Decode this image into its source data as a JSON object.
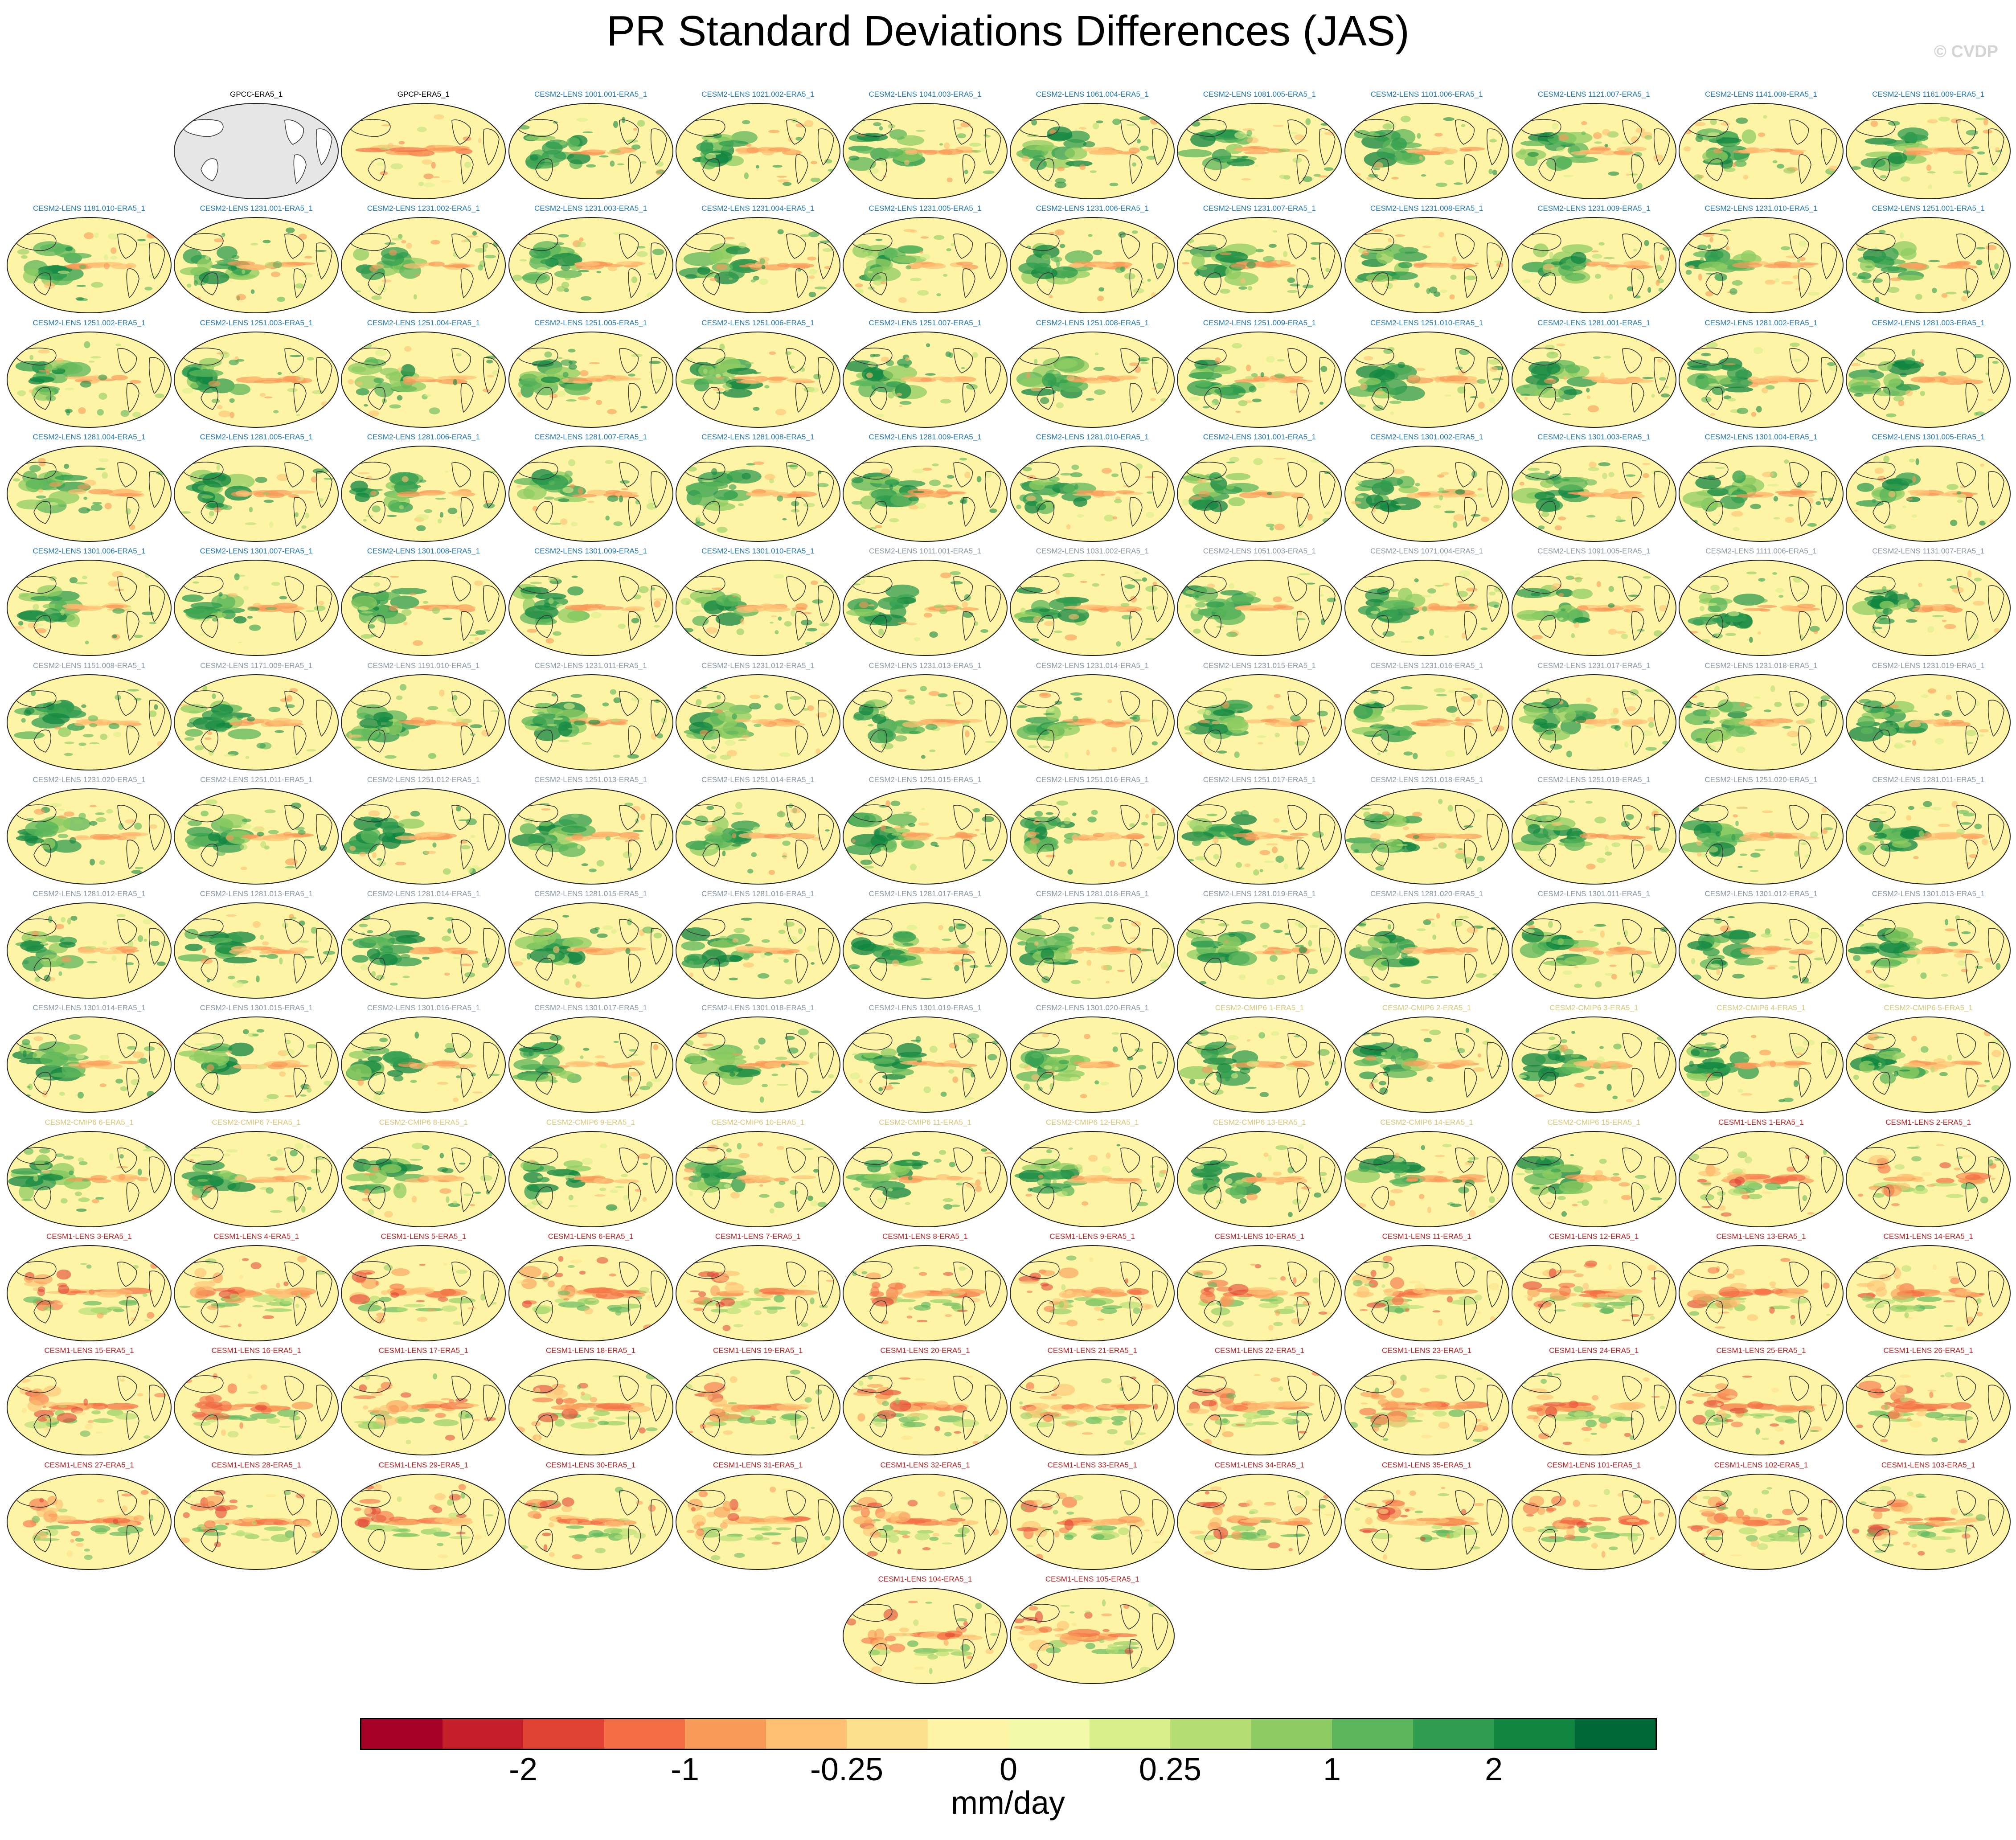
{
  "title": "PR Standard Deviations Differences (JAS)",
  "watermark": "© CVDP",
  "units": "mm/day",
  "colorbar": {
    "colors": [
      "#a50026",
      "#c5202a",
      "#df4133",
      "#f26d44",
      "#f89a58",
      "#fdc073",
      "#fde08b",
      "#fef4a6",
      "#f2f9a9",
      "#d9ef8b",
      "#b4de74",
      "#8dcc62",
      "#5bb55b",
      "#2f9c4f",
      "#108540",
      "#006837"
    ],
    "tick_labels": [
      {
        "label": "-2",
        "boundary": 2
      },
      {
        "label": "-1",
        "boundary": 4
      },
      {
        "label": "-0.25",
        "boundary": 6
      },
      {
        "label": "0",
        "boundary": 8
      },
      {
        "label": "0.25",
        "boundary": 10
      },
      {
        "label": "1",
        "boundary": 12
      },
      {
        "label": "2",
        "boundary": 14
      }
    ]
  },
  "label_colors": {
    "obs": "#000000",
    "cesm2": "#1f77b4",
    "cesm2_light": "#8a9aa8",
    "cmip6": "#d9c878",
    "cesm1": "#b22222"
  },
  "panels": [
    {
      "label": "GPCC-ERA5_1",
      "group": "obs",
      "style": "empty"
    },
    {
      "label": "GPCP-ERA5_1",
      "group": "obs",
      "style": "gpcp"
    },
    {
      "label": "CESM2-LENS 1001.001-ERA5_1",
      "group": "cesm2",
      "style": "cesm2"
    },
    {
      "label": "CESM2-LENS 1021.002-ERA5_1",
      "group": "cesm2",
      "style": "cesm2"
    },
    {
      "label": "CESM2-LENS 1041.003-ERA5_1",
      "group": "cesm2",
      "style": "cesm2"
    },
    {
      "label": "CESM2-LENS 1061.004-ERA5_1",
      "group": "cesm2",
      "style": "cesm2"
    },
    {
      "label": "CESM2-LENS 1081.005-ERA5_1",
      "group": "cesm2",
      "style": "cesm2"
    },
    {
      "label": "CESM2-LENS 1101.006-ERA5_1",
      "group": "cesm2",
      "style": "cesm2"
    },
    {
      "label": "CESM2-LENS 1121.007-ERA5_1",
      "group": "cesm2",
      "style": "cesm2"
    },
    {
      "label": "CESM2-LENS 1141.008-ERA5_1",
      "group": "cesm2",
      "style": "cesm2"
    },
    {
      "label": "CESM2-LENS 1161.009-ERA5_1",
      "group": "cesm2",
      "style": "cesm2"
    },
    {
      "label": "CESM2-LENS 1181.010-ERA5_1",
      "group": "cesm2",
      "style": "cesm2"
    },
    {
      "label": "CESM2-LENS 1231.001-ERA5_1",
      "group": "cesm2",
      "style": "cesm2"
    },
    {
      "label": "CESM2-LENS 1231.002-ERA5_1",
      "group": "cesm2",
      "style": "cesm2"
    },
    {
      "label": "CESM2-LENS 1231.003-ERA5_1",
      "group": "cesm2",
      "style": "cesm2"
    },
    {
      "label": "CESM2-LENS 1231.004-ERA5_1",
      "group": "cesm2",
      "style": "cesm2"
    },
    {
      "label": "CESM2-LENS 1231.005-ERA5_1",
      "group": "cesm2",
      "style": "cesm2"
    },
    {
      "label": "CESM2-LENS 1231.006-ERA5_1",
      "group": "cesm2",
      "style": "cesm2"
    },
    {
      "label": "CESM2-LENS 1231.007-ERA5_1",
      "group": "cesm2",
      "style": "cesm2"
    },
    {
      "label": "CESM2-LENS 1231.008-ERA5_1",
      "group": "cesm2",
      "style": "cesm2"
    },
    {
      "label": "CESM2-LENS 1231.009-ERA5_1",
      "group": "cesm2",
      "style": "cesm2"
    },
    {
      "label": "CESM2-LENS 1231.010-ERA5_1",
      "group": "cesm2",
      "style": "cesm2"
    },
    {
      "label": "CESM2-LENS 1251.001-ERA5_1",
      "group": "cesm2",
      "style": "cesm2"
    },
    {
      "label": "CESM2-LENS 1251.002-ERA5_1",
      "group": "cesm2",
      "style": "cesm2"
    },
    {
      "label": "CESM2-LENS 1251.003-ERA5_1",
      "group": "cesm2",
      "style": "cesm2"
    },
    {
      "label": "CESM2-LENS 1251.004-ERA5_1",
      "group": "cesm2",
      "style": "cesm2"
    },
    {
      "label": "CESM2-LENS 1251.005-ERA5_1",
      "group": "cesm2",
      "style": "cesm2"
    },
    {
      "label": "CESM2-LENS 1251.006-ERA5_1",
      "group": "cesm2",
      "style": "cesm2"
    },
    {
      "label": "CESM2-LENS 1251.007-ERA5_1",
      "group": "cesm2",
      "style": "cesm2"
    },
    {
      "label": "CESM2-LENS 1251.008-ERA5_1",
      "group": "cesm2",
      "style": "cesm2"
    },
    {
      "label": "CESM2-LENS 1251.009-ERA5_1",
      "group": "cesm2",
      "style": "cesm2"
    },
    {
      "label": "CESM2-LENS 1251.010-ERA5_1",
      "group": "cesm2",
      "style": "cesm2"
    },
    {
      "label": "CESM2-LENS 1281.001-ERA5_1",
      "group": "cesm2",
      "style": "cesm2"
    },
    {
      "label": "CESM2-LENS 1281.002-ERA5_1",
      "group": "cesm2",
      "style": "cesm2"
    },
    {
      "label": "CESM2-LENS 1281.003-ERA5_1",
      "group": "cesm2",
      "style": "cesm2"
    },
    {
      "label": "CESM2-LENS 1281.004-ERA5_1",
      "group": "cesm2",
      "style": "cesm2"
    },
    {
      "label": "CESM2-LENS 1281.005-ERA5_1",
      "group": "cesm2",
      "style": "cesm2"
    },
    {
      "label": "CESM2-LENS 1281.006-ERA5_1",
      "group": "cesm2",
      "style": "cesm2"
    },
    {
      "label": "CESM2-LENS 1281.007-ERA5_1",
      "group": "cesm2",
      "style": "cesm2"
    },
    {
      "label": "CESM2-LENS 1281.008-ERA5_1",
      "group": "cesm2",
      "style": "cesm2"
    },
    {
      "label": "CESM2-LENS 1281.009-ERA5_1",
      "group": "cesm2",
      "style": "cesm2"
    },
    {
      "label": "CESM2-LENS 1281.010-ERA5_1",
      "group": "cesm2",
      "style": "cesm2"
    },
    {
      "label": "CESM2-LENS 1301.001-ERA5_1",
      "group": "cesm2",
      "style": "cesm2"
    },
    {
      "label": "CESM2-LENS 1301.002-ERA5_1",
      "group": "cesm2",
      "style": "cesm2"
    },
    {
      "label": "CESM2-LENS 1301.003-ERA5_1",
      "group": "cesm2",
      "style": "cesm2"
    },
    {
      "label": "CESM2-LENS 1301.004-ERA5_1",
      "group": "cesm2",
      "style": "cesm2"
    },
    {
      "label": "CESM2-LENS 1301.005-ERA5_1",
      "group": "cesm2",
      "style": "cesm2"
    },
    {
      "label": "CESM2-LENS 1301.006-ERA5_1",
      "group": "cesm2",
      "style": "cesm2"
    },
    {
      "label": "CESM2-LENS 1301.007-ERA5_1",
      "group": "cesm2",
      "style": "cesm2"
    },
    {
      "label": "CESM2-LENS 1301.008-ERA5_1",
      "group": "cesm2",
      "style": "cesm2"
    },
    {
      "label": "CESM2-LENS 1301.009-ERA5_1",
      "group": "cesm2",
      "style": "cesm2"
    },
    {
      "label": "CESM2-LENS 1301.010-ERA5_1",
      "group": "cesm2",
      "style": "cesm2"
    },
    {
      "label": "CESM2-LENS 1011.001-ERA5_1",
      "group": "cesm2_light",
      "style": "cesm2"
    },
    {
      "label": "CESM2-LENS 1031.002-ERA5_1",
      "group": "cesm2_light",
      "style": "cesm2"
    },
    {
      "label": "CESM2-LENS 1051.003-ERA5_1",
      "group": "cesm2_light",
      "style": "cesm2"
    },
    {
      "label": "CESM2-LENS 1071.004-ERA5_1",
      "group": "cesm2_light",
      "style": "cesm2"
    },
    {
      "label": "CESM2-LENS 1091.005-ERA5_1",
      "group": "cesm2_light",
      "style": "cesm2"
    },
    {
      "label": "CESM2-LENS 1111.006-ERA5_1",
      "group": "cesm2_light",
      "style": "cesm2"
    },
    {
      "label": "CESM2-LENS 1131.007-ERA5_1",
      "group": "cesm2_light",
      "style": "cesm2"
    },
    {
      "label": "CESM2-LENS 1151.008-ERA5_1",
      "group": "cesm2_light",
      "style": "cesm2"
    },
    {
      "label": "CESM2-LENS 1171.009-ERA5_1",
      "group": "cesm2_light",
      "style": "cesm2"
    },
    {
      "label": "CESM2-LENS 1191.010-ERA5_1",
      "group": "cesm2_light",
      "style": "cesm2"
    },
    {
      "label": "CESM2-LENS 1231.011-ERA5_1",
      "group": "cesm2_light",
      "style": "cesm2"
    },
    {
      "label": "CESM2-LENS 1231.012-ERA5_1",
      "group": "cesm2_light",
      "style": "cesm2"
    },
    {
      "label": "CESM2-LENS 1231.013-ERA5_1",
      "group": "cesm2_light",
      "style": "cesm2"
    },
    {
      "label": "CESM2-LENS 1231.014-ERA5_1",
      "group": "cesm2_light",
      "style": "cesm2"
    },
    {
      "label": "CESM2-LENS 1231.015-ERA5_1",
      "group": "cesm2_light",
      "style": "cesm2"
    },
    {
      "label": "CESM2-LENS 1231.016-ERA5_1",
      "group": "cesm2_light",
      "style": "cesm2"
    },
    {
      "label": "CESM2-LENS 1231.017-ERA5_1",
      "group": "cesm2_light",
      "style": "cesm2"
    },
    {
      "label": "CESM2-LENS 1231.018-ERA5_1",
      "group": "cesm2_light",
      "style": "cesm2"
    },
    {
      "label": "CESM2-LENS 1231.019-ERA5_1",
      "group": "cesm2_light",
      "style": "cesm2"
    },
    {
      "label": "CESM2-LENS 1231.020-ERA5_1",
      "group": "cesm2_light",
      "style": "cesm2"
    },
    {
      "label": "CESM2-LENS 1251.011-ERA5_1",
      "group": "cesm2_light",
      "style": "cesm2"
    },
    {
      "label": "CESM2-LENS 1251.012-ERA5_1",
      "group": "cesm2_light",
      "style": "cesm2"
    },
    {
      "label": "CESM2-LENS 1251.013-ERA5_1",
      "group": "cesm2_light",
      "style": "cesm2"
    },
    {
      "label": "CESM2-LENS 1251.014-ERA5_1",
      "group": "cesm2_light",
      "style": "cesm2"
    },
    {
      "label": "CESM2-LENS 1251.015-ERA5_1",
      "group": "cesm2_light",
      "style": "cesm2"
    },
    {
      "label": "CESM2-LENS 1251.016-ERA5_1",
      "group": "cesm2_light",
      "style": "cesm2"
    },
    {
      "label": "CESM2-LENS 1251.017-ERA5_1",
      "group": "cesm2_light",
      "style": "cesm2"
    },
    {
      "label": "CESM2-LENS 1251.018-ERA5_1",
      "group": "cesm2_light",
      "style": "cesm2"
    },
    {
      "label": "CESM2-LENS 1251.019-ERA5_1",
      "group": "cesm2_light",
      "style": "cesm2"
    },
    {
      "label": "CESM2-LENS 1251.020-ERA5_1",
      "group": "cesm2_light",
      "style": "cesm2"
    },
    {
      "label": "CESM2-LENS 1281.011-ERA5_1",
      "group": "cesm2_light",
      "style": "cesm2"
    },
    {
      "label": "CESM2-LENS 1281.012-ERA5_1",
      "group": "cesm2_light",
      "style": "cesm2"
    },
    {
      "label": "CESM2-LENS 1281.013-ERA5_1",
      "group": "cesm2_light",
      "style": "cesm2"
    },
    {
      "label": "CESM2-LENS 1281.014-ERA5_1",
      "group": "cesm2_light",
      "style": "cesm2"
    },
    {
      "label": "CESM2-LENS 1281.015-ERA5_1",
      "group": "cesm2_light",
      "style": "cesm2"
    },
    {
      "label": "CESM2-LENS 1281.016-ERA5_1",
      "group": "cesm2_light",
      "style": "cesm2"
    },
    {
      "label": "CESM2-LENS 1281.017-ERA5_1",
      "group": "cesm2_light",
      "style": "cesm2"
    },
    {
      "label": "CESM2-LENS 1281.018-ERA5_1",
      "group": "cesm2_light",
      "style": "cesm2"
    },
    {
      "label": "CESM2-LENS 1281.019-ERA5_1",
      "group": "cesm2_light",
      "style": "cesm2"
    },
    {
      "label": "CESM2-LENS 1281.020-ERA5_1",
      "group": "cesm2_light",
      "style": "cesm2"
    },
    {
      "label": "CESM2-LENS 1301.011-ERA5_1",
      "group": "cesm2_light",
      "style": "cesm2"
    },
    {
      "label": "CESM2-LENS 1301.012-ERA5_1",
      "group": "cesm2_light",
      "style": "cesm2"
    },
    {
      "label": "CESM2-LENS 1301.013-ERA5_1",
      "group": "cesm2_light",
      "style": "cesm2"
    },
    {
      "label": "CESM2-LENS 1301.014-ERA5_1",
      "group": "cesm2_light",
      "style": "cesm2"
    },
    {
      "label": "CESM2-LENS 1301.015-ERA5_1",
      "group": "cesm2_light",
      "style": "cesm2"
    },
    {
      "label": "CESM2-LENS 1301.016-ERA5_1",
      "group": "cesm2_light",
      "style": "cesm2"
    },
    {
      "label": "CESM2-LENS 1301.017-ERA5_1",
      "group": "cesm2_light",
      "style": "cesm2"
    },
    {
      "label": "CESM2-LENS 1301.018-ERA5_1",
      "group": "cesm2_light",
      "style": "cesm2"
    },
    {
      "label": "CESM2-LENS 1301.019-ERA5_1",
      "group": "cesm2_light",
      "style": "cesm2"
    },
    {
      "label": "CESM2-LENS 1301.020-ERA5_1",
      "group": "cesm2_light",
      "style": "cesm2"
    },
    {
      "label": "CESM2-CMIP6 1-ERA5_1",
      "group": "cmip6",
      "style": "cesm2"
    },
    {
      "label": "CESM2-CMIP6 2-ERA5_1",
      "group": "cmip6",
      "style": "cesm2"
    },
    {
      "label": "CESM2-CMIP6 3-ERA5_1",
      "group": "cmip6",
      "style": "cesm2"
    },
    {
      "label": "CESM2-CMIP6 4-ERA5_1",
      "group": "cmip6",
      "style": "cesm2"
    },
    {
      "label": "CESM2-CMIP6 5-ERA5_1",
      "group": "cmip6",
      "style": "cesm2"
    },
    {
      "label": "CESM2-CMIP6 6-ERA5_1",
      "group": "cmip6",
      "style": "cesm2"
    },
    {
      "label": "CESM2-CMIP6 7-ERA5_1",
      "group": "cmip6",
      "style": "cesm2"
    },
    {
      "label": "CESM2-CMIP6 8-ERA5_1",
      "group": "cmip6",
      "style": "cesm2"
    },
    {
      "label": "CESM2-CMIP6 9-ERA5_1",
      "group": "cmip6",
      "style": "cesm2"
    },
    {
      "label": "CESM2-CMIP6 10-ERA5_1",
      "group": "cmip6",
      "style": "cesm2"
    },
    {
      "label": "CESM2-CMIP6 11-ERA5_1",
      "group": "cmip6",
      "style": "cesm2"
    },
    {
      "label": "CESM2-CMIP6 12-ERA5_1",
      "group": "cmip6",
      "style": "cesm2"
    },
    {
      "label": "CESM2-CMIP6 13-ERA5_1",
      "group": "cmip6",
      "style": "cesm2"
    },
    {
      "label": "CESM2-CMIP6 14-ERA5_1",
      "group": "cmip6",
      "style": "cesm2"
    },
    {
      "label": "CESM2-CMIP6 15-ERA5_1",
      "group": "cmip6",
      "style": "cesm2"
    },
    {
      "label": "CESM1-LENS 1-ERA5_1",
      "group": "cesm1",
      "style": "cesm1"
    },
    {
      "label": "CESM1-LENS 2-ERA5_1",
      "group": "cesm1",
      "style": "cesm1"
    },
    {
      "label": "CESM1-LENS 3-ERA5_1",
      "group": "cesm1",
      "style": "cesm1"
    },
    {
      "label": "CESM1-LENS 4-ERA5_1",
      "group": "cesm1",
      "style": "cesm1"
    },
    {
      "label": "CESM1-LENS 5-ERA5_1",
      "group": "cesm1",
      "style": "cesm1"
    },
    {
      "label": "CESM1-LENS 6-ERA5_1",
      "group": "cesm1",
      "style": "cesm1"
    },
    {
      "label": "CESM1-LENS 7-ERA5_1",
      "group": "cesm1",
      "style": "cesm1"
    },
    {
      "label": "CESM1-LENS 8-ERA5_1",
      "group": "cesm1",
      "style": "cesm1"
    },
    {
      "label": "CESM1-LENS 9-ERA5_1",
      "group": "cesm1",
      "style": "cesm1"
    },
    {
      "label": "CESM1-LENS 10-ERA5_1",
      "group": "cesm1",
      "style": "cesm1"
    },
    {
      "label": "CESM1-LENS 11-ERA5_1",
      "group": "cesm1",
      "style": "cesm1"
    },
    {
      "label": "CESM1-LENS 12-ERA5_1",
      "group": "cesm1",
      "style": "cesm1"
    },
    {
      "label": "CESM1-LENS 13-ERA5_1",
      "group": "cesm1",
      "style": "cesm1"
    },
    {
      "label": "CESM1-LENS 14-ERA5_1",
      "group": "cesm1",
      "style": "cesm1"
    },
    {
      "label": "CESM1-LENS 15-ERA5_1",
      "group": "cesm1",
      "style": "cesm1"
    },
    {
      "label": "CESM1-LENS 16-ERA5_1",
      "group": "cesm1",
      "style": "cesm1"
    },
    {
      "label": "CESM1-LENS 17-ERA5_1",
      "group": "cesm1",
      "style": "cesm1"
    },
    {
      "label": "CESM1-LENS 18-ERA5_1",
      "group": "cesm1",
      "style": "cesm1"
    },
    {
      "label": "CESM1-LENS 19-ERA5_1",
      "group": "cesm1",
      "style": "cesm1"
    },
    {
      "label": "CESM1-LENS 20-ERA5_1",
      "group": "cesm1",
      "style": "cesm1"
    },
    {
      "label": "CESM1-LENS 21-ERA5_1",
      "group": "cesm1",
      "style": "cesm1"
    },
    {
      "label": "CESM1-LENS 22-ERA5_1",
      "group": "cesm1",
      "style": "cesm1"
    },
    {
      "label": "CESM1-LENS 23-ERA5_1",
      "group": "cesm1",
      "style": "cesm1"
    },
    {
      "label": "CESM1-LENS 24-ERA5_1",
      "group": "cesm1",
      "style": "cesm1"
    },
    {
      "label": "CESM1-LENS 25-ERA5_1",
      "group": "cesm1",
      "style": "cesm1"
    },
    {
      "label": "CESM1-LENS 26-ERA5_1",
      "group": "cesm1",
      "style": "cesm1"
    },
    {
      "label": "CESM1-LENS 27-ERA5_1",
      "group": "cesm1",
      "style": "cesm1"
    },
    {
      "label": "CESM1-LENS 28-ERA5_1",
      "group": "cesm1",
      "style": "cesm1"
    },
    {
      "label": "CESM1-LENS 29-ERA5_1",
      "group": "cesm1",
      "style": "cesm1"
    },
    {
      "label": "CESM1-LENS 30-ERA5_1",
      "group": "cesm1",
      "style": "cesm1"
    },
    {
      "label": "CESM1-LENS 31-ERA5_1",
      "group": "cesm1",
      "style": "cesm1"
    },
    {
      "label": "CESM1-LENS 32-ERA5_1",
      "group": "cesm1",
      "style": "cesm1"
    },
    {
      "label": "CESM1-LENS 33-ERA5_1",
      "group": "cesm1",
      "style": "cesm1"
    },
    {
      "label": "CESM1-LENS 34-ERA5_1",
      "group": "cesm1",
      "style": "cesm1"
    },
    {
      "label": "CESM1-LENS 35-ERA5_1",
      "group": "cesm1",
      "style": "cesm1"
    },
    {
      "label": "CESM1-LENS 101-ERA5_1",
      "group": "cesm1",
      "style": "cesm1"
    },
    {
      "label": "CESM1-LENS 102-ERA5_1",
      "group": "cesm1",
      "style": "cesm1"
    },
    {
      "label": "CESM1-LENS 103-ERA5_1",
      "group": "cesm1",
      "style": "cesm1"
    },
    {
      "label": "CESM1-LENS 104-ERA5_1",
      "group": "cesm1",
      "style": "cesm1"
    },
    {
      "label": "CESM1-LENS 105-ERA5_1",
      "group": "cesm1",
      "style": "cesm1"
    }
  ]
}
